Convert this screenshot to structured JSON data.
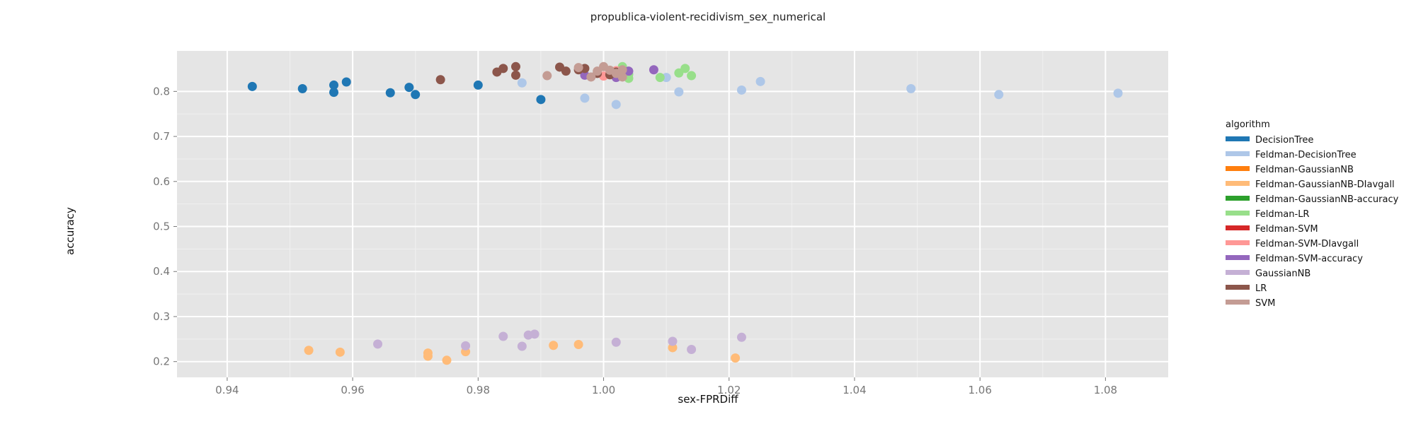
{
  "chart_data": {
    "type": "scatter",
    "title": "propublica-violent-recidivism_sex_numerical",
    "xlabel": "sex-FPRDiff",
    "ylabel": "accuracy",
    "xlim": [
      0.932,
      1.09
    ],
    "ylim": [
      0.165,
      0.89
    ],
    "xticks": [
      0.94,
      0.96,
      0.98,
      1.0,
      1.02,
      1.04,
      1.06,
      1.08
    ],
    "xtick_labels": [
      "0.94",
      "0.96",
      "0.98",
      "1.00",
      "1.02",
      "1.04",
      "1.06",
      "1.08"
    ],
    "yticks": [
      0.2,
      0.3,
      0.4,
      0.5,
      0.6,
      0.7,
      0.8
    ],
    "ytick_labels": [
      "0.2",
      "0.3",
      "0.4",
      "0.5",
      "0.6",
      "0.7",
      "0.8"
    ],
    "grid": true,
    "legend": {
      "title": "algorithm",
      "placement": "right"
    },
    "series": [
      {
        "name": "DecisionTree",
        "color": "#1f77b4",
        "points": [
          [
            0.944,
            0.811
          ],
          [
            0.952,
            0.806
          ],
          [
            0.957,
            0.814
          ],
          [
            0.957,
            0.798
          ],
          [
            0.959,
            0.821
          ],
          [
            0.966,
            0.797
          ],
          [
            0.969,
            0.809
          ],
          [
            0.97,
            0.793
          ],
          [
            0.98,
            0.814
          ],
          [
            0.99,
            0.782
          ]
        ]
      },
      {
        "name": "Feldman-DecisionTree",
        "color": "#aec7e8",
        "points": [
          [
            0.987,
            0.819
          ],
          [
            0.997,
            0.785
          ],
          [
            1.002,
            0.771
          ],
          [
            1.01,
            0.831
          ],
          [
            1.012,
            0.799
          ],
          [
            1.022,
            0.803
          ],
          [
            1.025,
            0.822
          ],
          [
            1.049,
            0.806
          ],
          [
            1.063,
            0.793
          ],
          [
            1.082,
            0.796
          ]
        ]
      },
      {
        "name": "Feldman-GaussianNB",
        "color": "#ff7f0e",
        "points": []
      },
      {
        "name": "Feldman-GaussianNB-DIavgall",
        "color": "#ffbb78",
        "points": [
          [
            0.953,
            0.225
          ],
          [
            0.958,
            0.221
          ],
          [
            0.972,
            0.219
          ],
          [
            0.972,
            0.212
          ],
          [
            0.975,
            0.203
          ],
          [
            0.978,
            0.222
          ],
          [
            0.992,
            0.236
          ],
          [
            0.996,
            0.238
          ],
          [
            1.011,
            0.231
          ],
          [
            1.021,
            0.208
          ]
        ]
      },
      {
        "name": "Feldman-GaussianNB-accuracy",
        "color": "#2ca02c",
        "points": []
      },
      {
        "name": "Feldman-LR",
        "color": "#98df8a",
        "points": [
          [
            1.003,
            0.855
          ],
          [
            1.004,
            0.829
          ],
          [
            1.004,
            0.838
          ],
          [
            1.009,
            0.831
          ],
          [
            1.012,
            0.841
          ],
          [
            1.013,
            0.851
          ],
          [
            1.014,
            0.835
          ]
        ]
      },
      {
        "name": "Feldman-SVM",
        "color": "#d62728",
        "points": []
      },
      {
        "name": "Feldman-SVM-DIavgall",
        "color": "#ff9896",
        "points": [
          [
            1.0,
            0.834
          ],
          [
            1.002,
            0.846
          ]
        ]
      },
      {
        "name": "Feldman-SVM-accuracy",
        "color": "#9467bd",
        "points": [
          [
            0.997,
            0.836
          ],
          [
            1.002,
            0.831
          ],
          [
            1.004,
            0.845
          ],
          [
            1.008,
            0.848
          ]
        ]
      },
      {
        "name": "GaussianNB",
        "color": "#c5b0d5",
        "points": [
          [
            0.964,
            0.239
          ],
          [
            0.978,
            0.235
          ],
          [
            0.984,
            0.256
          ],
          [
            0.987,
            0.234
          ],
          [
            0.988,
            0.259
          ],
          [
            0.989,
            0.261
          ],
          [
            1.002,
            0.243
          ],
          [
            1.011,
            0.245
          ],
          [
            1.014,
            0.227
          ],
          [
            1.022,
            0.254
          ]
        ]
      },
      {
        "name": "LR",
        "color": "#8c564b",
        "points": [
          [
            0.974,
            0.826
          ],
          [
            0.983,
            0.843
          ],
          [
            0.984,
            0.851
          ],
          [
            0.986,
            0.855
          ],
          [
            0.986,
            0.836
          ],
          [
            0.993,
            0.854
          ],
          [
            0.994,
            0.845
          ],
          [
            0.996,
            0.848
          ],
          [
            0.997,
            0.851
          ],
          [
            0.999,
            0.84
          ],
          [
            1.001,
            0.837
          ],
          [
            1.002,
            0.843
          ]
        ]
      },
      {
        "name": "SVM",
        "color": "#c49c94",
        "points": [
          [
            0.991,
            0.835
          ],
          [
            0.996,
            0.853
          ],
          [
            0.998,
            0.832
          ],
          [
            0.999,
            0.845
          ],
          [
            1.0,
            0.855
          ],
          [
            1.001,
            0.847
          ],
          [
            1.002,
            0.84
          ],
          [
            1.003,
            0.832
          ],
          [
            1.003,
            0.848
          ]
        ]
      }
    ]
  }
}
